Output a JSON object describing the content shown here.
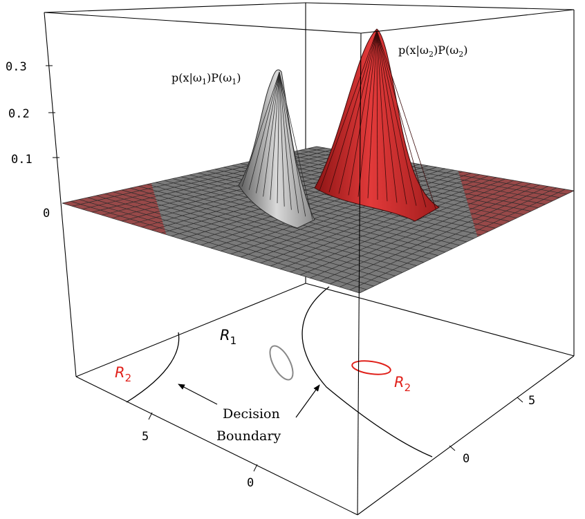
{
  "z_axis": {
    "ticks": [
      {
        "label": "0.3",
        "value": 0.3
      },
      {
        "label": "0.2",
        "value": 0.2
      },
      {
        "label": "0.1",
        "value": 0.1
      },
      {
        "label": "0",
        "value": 0.0
      }
    ]
  },
  "front_axis": {
    "ticks": [
      {
        "label": "5",
        "value": 5
      },
      {
        "label": "0",
        "value": 0
      }
    ]
  },
  "right_axis": {
    "ticks": [
      {
        "label": "5",
        "value": 5
      },
      {
        "label": "0",
        "value": 0
      }
    ]
  },
  "peaks": {
    "omega1": {
      "label_main": "p(x|ω",
      "label_sub1": "1",
      "label_mid": ")P(ω",
      "label_sub2": "1",
      "label_end": ")",
      "color": "#b3b3b3",
      "peak_height": 0.29
    },
    "omega2": {
      "label_main": "p(x|ω",
      "label_sub1": "2",
      "label_mid": ")P(ω",
      "label_sub2": "2",
      "label_end": ")",
      "color": "#cc2a2a",
      "peak_height": 0.37
    }
  },
  "regions": {
    "r1": {
      "letter": "R",
      "sub": "1",
      "color": "#000000"
    },
    "r2_left": {
      "letter": "R",
      "sub": "2",
      "color": "#e0201a"
    },
    "r2_right": {
      "letter": "R",
      "sub": "2",
      "color": "#e0201a"
    }
  },
  "annotation": {
    "line1": "Decision",
    "line2": "Boundary"
  },
  "colors": {
    "grid_gray": "#7a7a7a",
    "grid_red": "#a33a3a",
    "contour_omega1": "#888888",
    "contour_omega2": "#e0201a"
  }
}
